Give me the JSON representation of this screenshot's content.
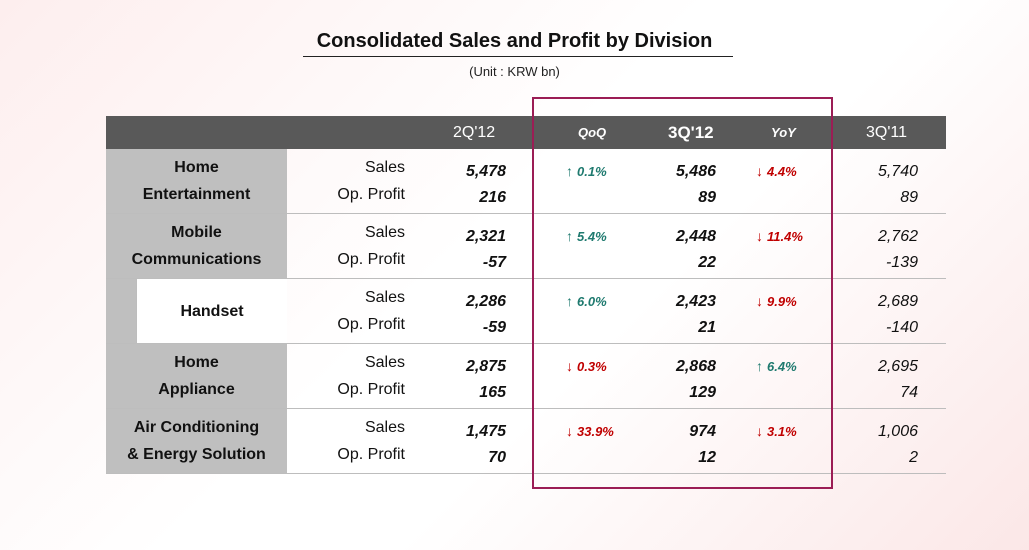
{
  "title": "Consolidated Sales and Profit by Division",
  "unit": "(Unit : KRW bn)",
  "columns": {
    "c1": "2Q'12",
    "c2": "QoQ",
    "c3": "3Q'12",
    "c4": "YoY",
    "c5": "3Q'11"
  },
  "metrics": {
    "sales": "Sales",
    "op": "Op. Profit"
  },
  "rows": [
    {
      "line1": "Home",
      "line2": "Entertainment",
      "q2_sales": "5,478",
      "q2_op": "216",
      "qoq": "0.1%",
      "qoq_dir": "up",
      "q3_sales": "5,486",
      "q3_op": "89",
      "yoy": "4.4%",
      "yoy_dir": "down",
      "q11_sales": "5,740",
      "q11_op": "89"
    },
    {
      "line1": "Mobile",
      "line2": "Communications",
      "q2_sales": "2,321",
      "q2_op": "-57",
      "qoq": "5.4%",
      "qoq_dir": "up",
      "q3_sales": "2,448",
      "q3_op": "22",
      "yoy": "11.4%",
      "yoy_dir": "down",
      "q11_sales": "2,762",
      "q11_op": "-139"
    },
    {
      "line1": "Handset",
      "line2": "",
      "q2_sales": "2,286",
      "q2_op": "-59",
      "qoq": "6.0%",
      "qoq_dir": "up",
      "q3_sales": "2,423",
      "q3_op": "21",
      "yoy": "9.9%",
      "yoy_dir": "down",
      "q11_sales": "2,689",
      "q11_op": "-140"
    },
    {
      "line1": "Home",
      "line2": "Appliance",
      "q2_sales": "2,875",
      "q2_op": "165",
      "qoq": "0.3%",
      "qoq_dir": "down",
      "q3_sales": "2,868",
      "q3_op": "129",
      "yoy": "6.4%",
      "yoy_dir": "up",
      "q11_sales": "2,695",
      "q11_op": "74"
    },
    {
      "line1": "Air Conditioning",
      "line2": "& Energy Solution",
      "q2_sales": "1,475",
      "q2_op": "70",
      "qoq": "33.9%",
      "qoq_dir": "down",
      "q3_sales": "974",
      "q3_op": "12",
      "yoy": "3.1%",
      "yoy_dir": "down",
      "q11_sales": "1,006",
      "q11_op": "2"
    }
  ],
  "colors": {
    "up": "#1f7a6f",
    "down": "#c00000",
    "highlight": "#9b1d55",
    "header": "#595959",
    "label": "#bfbfbf"
  },
  "icons": {
    "up": "arrow-up-icon",
    "down": "arrow-down-icon"
  }
}
